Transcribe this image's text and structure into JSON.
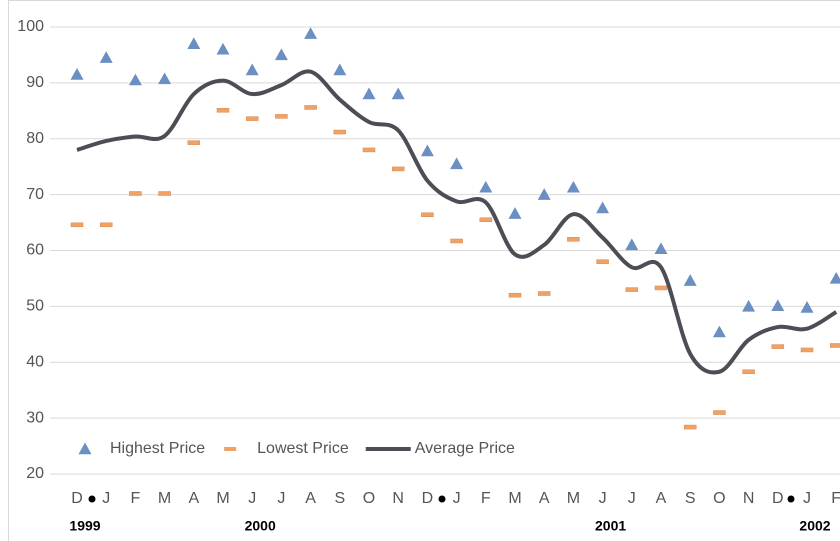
{
  "chart_data": {
    "type": "line",
    "categories": [
      "D",
      "J",
      "F",
      "M",
      "A",
      "M",
      "J",
      "J",
      "A",
      "S",
      "O",
      "N",
      "D",
      "J",
      "F",
      "M",
      "A",
      "M",
      "J",
      "J",
      "A",
      "S",
      "O",
      "N",
      "D",
      "J",
      "F"
    ],
    "year_labels": [
      "1999",
      null,
      null,
      null,
      null,
      null,
      "2000",
      null,
      null,
      null,
      null,
      null,
      null,
      null,
      null,
      null,
      null,
      null,
      "2001",
      null,
      null,
      null,
      null,
      null,
      null,
      "2002",
      null
    ],
    "series": [
      {
        "name": "Highest Price",
        "marker": "triangle",
        "color": "#6b8fc2",
        "values": [
          91.5,
          94.5,
          90.5,
          90.7,
          97,
          96,
          92.3,
          95,
          98.8,
          92.3,
          88,
          88,
          77.8,
          75.5,
          71.3,
          66.6,
          70,
          71.3,
          67.6,
          61,
          60.3,
          54.6,
          45.4,
          50,
          50.1,
          49.8,
          55
        ]
      },
      {
        "name": "Lowest Price",
        "marker": "dash",
        "color": "#f0a266",
        "values": [
          64.6,
          64.6,
          70.2,
          70.2,
          79.3,
          85.1,
          83.6,
          84,
          85.6,
          81.2,
          78,
          74.6,
          66.4,
          61.7,
          65.5,
          52,
          52.3,
          62,
          58,
          53,
          53.3,
          28.4,
          31,
          38.3,
          42.8,
          42.2,
          43
        ]
      },
      {
        "name": "Average Price",
        "marker": "line",
        "color": "#4d4d55",
        "values": [
          78,
          79.6,
          80.4,
          80.5,
          88,
          90.4,
          88,
          89.6,
          92,
          87,
          83,
          81.5,
          72.5,
          68.8,
          68.6,
          59.3,
          61,
          66.5,
          62.3,
          57,
          57,
          41.5,
          38.3,
          44,
          46.3,
          46,
          49
        ]
      }
    ],
    "ylim": [
      20,
      100
    ],
    "yticks": [
      20,
      30,
      40,
      50,
      60,
      70,
      80,
      90,
      100
    ],
    "grid": true,
    "legend": "bottom-left",
    "smooth": true
  }
}
